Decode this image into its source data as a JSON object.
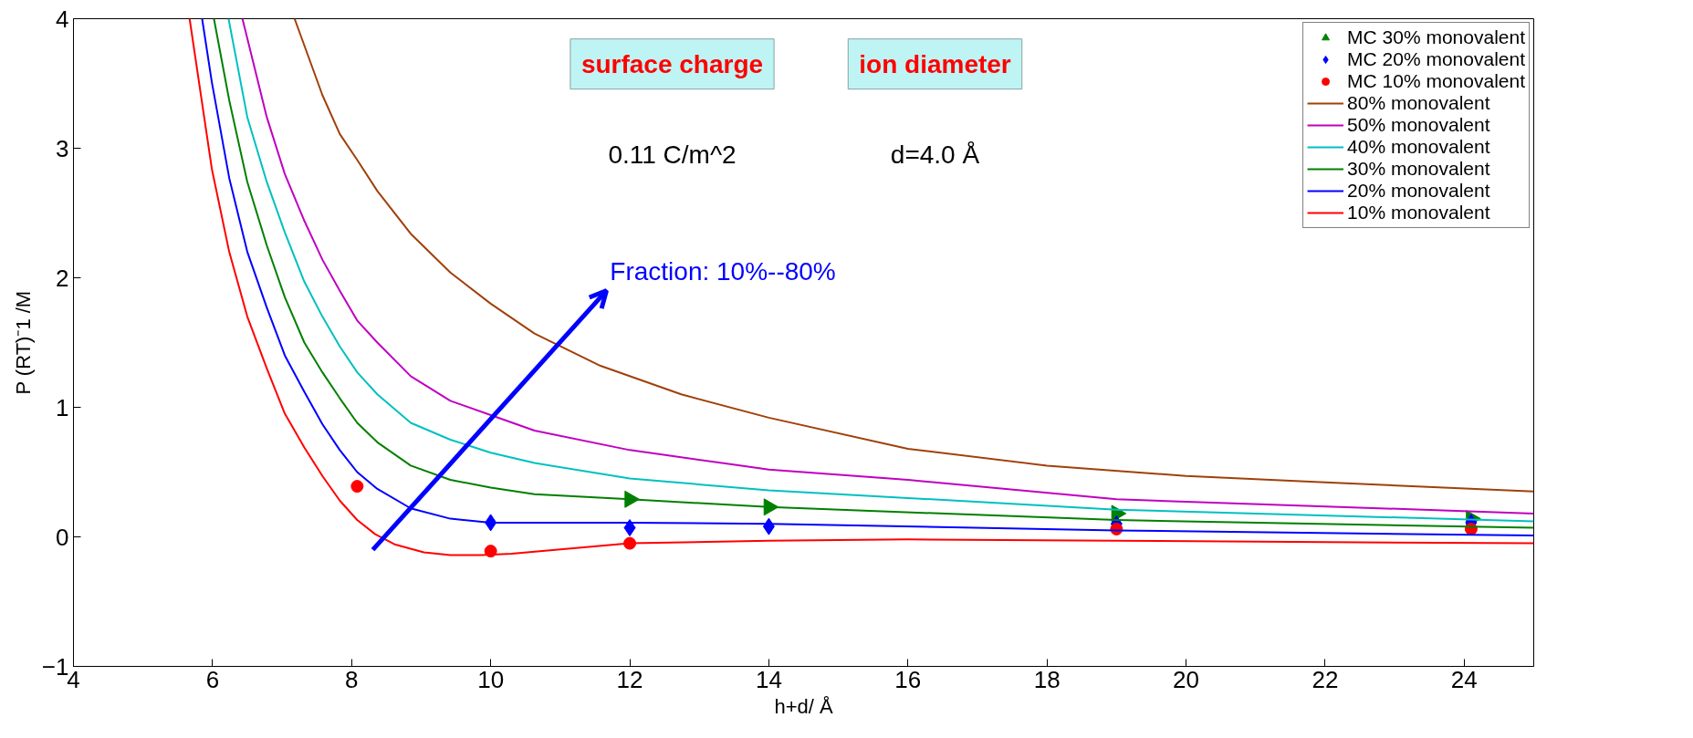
{
  "chart_data": {
    "type": "line",
    "xlabel": "h+d/ Å",
    "ylabel": "P (RT)⁻1 /M",
    "xlim": [
      4,
      25
    ],
    "ylim": [
      -1,
      4
    ],
    "xticks": [
      4,
      6,
      8,
      10,
      12,
      14,
      16,
      18,
      20,
      22,
      24
    ],
    "yticks": [
      {
        "value": -1,
        "label": "−1"
      },
      0,
      1,
      2,
      3,
      4
    ],
    "grid": false,
    "legend": "top right",
    "annotations": [
      "surface charge",
      "ion diameter",
      "0.11 C/m^2",
      "d=4.0 Å",
      "Fraction: 10%--80%"
    ],
    "series": [
      {
        "name": "MC 30% monovalent",
        "type": "scatter",
        "marker": "triangle",
        "color": "#008000",
        "x": [
          12,
          14,
          19,
          24.1
        ],
        "values": [
          0.29,
          0.23,
          0.18,
          0.14
        ]
      },
      {
        "name": "MC 20% monovalent",
        "type": "scatter",
        "marker": "diamond",
        "color": "#0000ff",
        "x": [
          10,
          12,
          14,
          19,
          24.1
        ],
        "values": [
          0.11,
          0.07,
          0.08,
          0.1,
          0.11
        ]
      },
      {
        "name": "MC 10% monovalent",
        "type": "scatter",
        "marker": "circle",
        "color": "#ff0000",
        "x": [
          8.08,
          10,
          12,
          19,
          24.1
        ],
        "values": [
          0.39,
          -0.11,
          -0.05,
          0.06,
          0.06
        ]
      },
      {
        "name": "80% monovalent",
        "color": "#a0400a",
        "x": [
          7.18,
          7.58,
          7.83,
          8.08,
          8.37,
          8.85,
          9.42,
          10.0,
          10.63,
          11.58,
          12.74,
          14,
          16,
          18,
          20,
          22,
          25
        ],
        "values": [
          4,
          3.41,
          3.11,
          2.91,
          2.67,
          2.34,
          2.04,
          1.8,
          1.57,
          1.32,
          1.1,
          0.92,
          0.68,
          0.55,
          0.47,
          0.42,
          0.35
        ]
      },
      {
        "name": "50% monovalent",
        "color": "#c000c0",
        "x": [
          6.43,
          6.78,
          7.04,
          7.32,
          7.58,
          7.83,
          8.08,
          8.37,
          8.85,
          9.42,
          10.0,
          10.63,
          12,
          14,
          16,
          19,
          25
        ],
        "values": [
          4,
          3.24,
          2.8,
          2.44,
          2.14,
          1.9,
          1.67,
          1.5,
          1.24,
          1.05,
          0.94,
          0.82,
          0.67,
          0.52,
          0.44,
          0.29,
          0.18
        ]
      },
      {
        "name": "40% monovalent",
        "color": "#00c0c0",
        "x": [
          6.23,
          6.5,
          6.78,
          7.04,
          7.32,
          7.58,
          7.83,
          8.08,
          8.37,
          8.85,
          9.42,
          10.0,
          10.63,
          12,
          14,
          16,
          19,
          25
        ],
        "values": [
          4,
          3.24,
          2.74,
          2.35,
          1.97,
          1.7,
          1.47,
          1.27,
          1.1,
          0.88,
          0.75,
          0.65,
          0.57,
          0.45,
          0.36,
          0.3,
          0.21,
          0.12
        ]
      },
      {
        "name": "30% monovalent",
        "color": "#008000",
        "x": [
          6.02,
          6.24,
          6.5,
          6.78,
          7.04,
          7.32,
          7.58,
          7.83,
          8.08,
          8.37,
          8.85,
          9.42,
          10.0,
          10.63,
          12,
          14,
          19,
          25
        ],
        "values": [
          4,
          3.37,
          2.74,
          2.25,
          1.85,
          1.5,
          1.27,
          1.07,
          0.88,
          0.73,
          0.55,
          0.44,
          0.38,
          0.33,
          0.29,
          0.23,
          0.13,
          0.07
        ]
      },
      {
        "name": "20% monovalent",
        "color": "#0000ff",
        "x": [
          5.85,
          5.99,
          6.24,
          6.5,
          6.78,
          7.04,
          7.32,
          7.58,
          7.83,
          8.08,
          8.37,
          8.85,
          9.42,
          10.0,
          12,
          14,
          19,
          25
        ],
        "values": [
          4,
          3.51,
          2.77,
          2.2,
          1.77,
          1.4,
          1.12,
          0.87,
          0.67,
          0.5,
          0.37,
          0.22,
          0.14,
          0.11,
          0.11,
          0.1,
          0.05,
          0.01
        ]
      },
      {
        "name": "10% monovalent",
        "color": "#ff0000",
        "x": [
          5.67,
          5.99,
          6.24,
          6.5,
          6.78,
          7.04,
          7.32,
          7.58,
          7.83,
          8.08,
          8.34,
          8.63,
          9.04,
          9.42,
          9.86,
          10.3,
          12,
          14,
          16,
          19,
          25
        ],
        "values": [
          4,
          2.84,
          2.2,
          1.7,
          1.3,
          0.95,
          0.69,
          0.47,
          0.28,
          0.13,
          0.02,
          -0.06,
          -0.12,
          -0.14,
          -0.14,
          -0.13,
          -0.05,
          -0.03,
          -0.02,
          -0.03,
          -0.05
        ]
      }
    ]
  }
}
